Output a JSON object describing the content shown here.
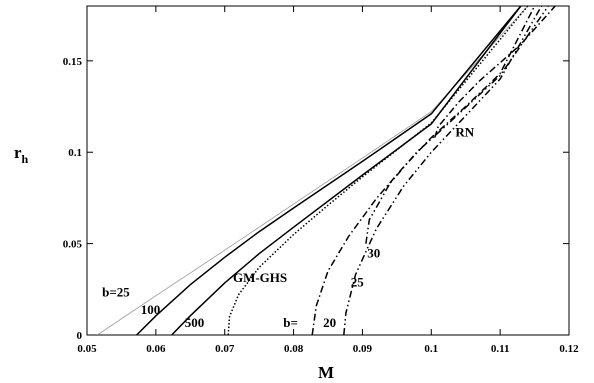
{
  "chart_data": {
    "type": "line",
    "xlabel": "M",
    "ylabel": "r",
    "ylabel_sub": "h",
    "xlim": [
      0.05,
      0.12
    ],
    "ylim": [
      0,
      0.18
    ],
    "xticks": [
      0.05,
      0.06,
      0.07,
      0.08,
      0.09,
      0.1,
      0.11,
      0.12
    ],
    "yticks": [
      0,
      0.05,
      0.1,
      0.15
    ],
    "xtick_labels": [
      "0.05",
      "0.06",
      "0.07",
      "0.08",
      "0.09",
      "0.1",
      "0.11",
      "0.12"
    ],
    "ytick_labels": [
      "0",
      "0.05",
      "0.1",
      "0.15"
    ],
    "grid": false,
    "series": [
      {
        "style": "thin",
        "x": [
          0.0515,
          0.06,
          0.07,
          0.08,
          0.09,
          0.1,
          0.114
        ],
        "y": [
          0,
          0.0215,
          0.0464,
          0.0716,
          0.0968,
          0.1222,
          0.18
        ]
      },
      {
        "style": "solid",
        "x": [
          0.0572,
          0.06,
          0.065,
          0.07,
          0.075,
          0.08,
          0.09,
          0.1,
          0.113
        ],
        "y": [
          0,
          0.0105,
          0.0275,
          0.0425,
          0.0565,
          0.0695,
          0.095,
          0.121,
          0.18
        ]
      },
      {
        "style": "solid",
        "x": [
          0.0623,
          0.065,
          0.07,
          0.075,
          0.08,
          0.09,
          0.1,
          0.113
        ],
        "y": [
          0,
          0.0105,
          0.0285,
          0.0445,
          0.059,
          0.0875,
          0.1155,
          0.18
        ]
      },
      {
        "style": "dotted",
        "x": [
          0.0705,
          0.0707,
          0.072,
          0.075,
          0.08,
          0.085,
          0.09,
          0.1,
          0.114
        ],
        "y": [
          0,
          0.01,
          0.022,
          0.037,
          0.055,
          0.071,
          0.0865,
          0.116,
          0.18
        ]
      },
      {
        "style": "dashdot",
        "x": [
          0.0827,
          0.0833,
          0.085,
          0.088,
          0.092,
          0.096,
          0.1,
          0.105,
          0.11,
          0.115
        ],
        "y": [
          0,
          0.016,
          0.035,
          0.054,
          0.0745,
          0.092,
          0.108,
          0.125,
          0.143,
          0.18
        ]
      },
      {
        "style": "dashdot2",
        "x": [
          0.0873,
          0.0876,
          0.089,
          0.092,
          0.096,
          0.1,
          0.105,
          0.11,
          0.116
        ],
        "y": [
          0,
          0.012,
          0.033,
          0.058,
          0.0815,
          0.1,
          0.12,
          0.14,
          0.18
        ]
      },
      {
        "style": "dashdot2",
        "x": [
          0.0905,
          0.091,
          0.094,
          0.098,
          0.102,
          0.106,
          0.11,
          0.117
        ],
        "y": [
          0.05,
          0.063,
          0.083,
          0.1005,
          0.114,
          0.128,
          0.142,
          0.18
        ]
      },
      {
        "style": "dashdot",
        "x": [
          0.1005,
          0.101,
          0.104,
          0.107,
          0.11,
          0.113,
          0.118
        ],
        "y": [
          0.108,
          0.114,
          0.1275,
          0.139,
          0.149,
          0.159,
          0.18
        ]
      }
    ],
    "annotations": [
      {
        "text": "b=25",
        "x": 0.0522,
        "y": 0.021
      },
      {
        "text": "100",
        "x": 0.0578,
        "y": 0.0115
      },
      {
        "text": "500",
        "x": 0.0642,
        "y": 0.0045
      },
      {
        "text": "GM-GHS",
        "x": 0.0712,
        "y": 0.029
      },
      {
        "text": "b=",
        "x": 0.0785,
        "y": 0.0045
      },
      {
        "text": "20",
        "x": 0.0843,
        "y": 0.0045
      },
      {
        "text": "25",
        "x": 0.0883,
        "y": 0.0265
      },
      {
        "text": "30",
        "x": 0.0907,
        "y": 0.0425
      },
      {
        "text": "RN",
        "x": 0.1035,
        "y": 0.1085
      }
    ]
  }
}
